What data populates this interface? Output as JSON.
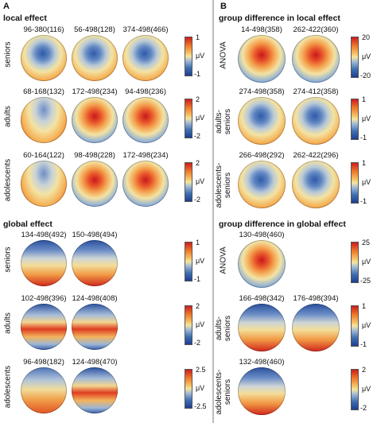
{
  "panel_a": {
    "letter": "A",
    "sections": [
      {
        "title": "local effect",
        "rows": [
          {
            "label": "seniors",
            "maps": [
              {
                "window": "96-380(116)",
                "pattern": "blue-center"
              },
              {
                "window": "56-498(128)",
                "pattern": "blue-center"
              },
              {
                "window": "374-498(466)",
                "pattern": "blue-center"
              }
            ],
            "colorbar": {
              "max": "1",
              "unit": "μV",
              "min": "-1"
            }
          },
          {
            "label": "adults",
            "maps": [
              {
                "window": "68-168(132)",
                "pattern": "blue-front"
              },
              {
                "window": "172-498(234)",
                "pattern": "red-center"
              },
              {
                "window": "94-498(236)",
                "pattern": "red-center"
              }
            ],
            "colorbar": {
              "max": "2",
              "unit": "μV",
              "min": "-2"
            }
          },
          {
            "label": "adolescents",
            "maps": [
              {
                "window": "60-164(122)",
                "pattern": "blue-front"
              },
              {
                "window": "98-498(228)",
                "pattern": "red-center"
              },
              {
                "window": "172-498(234)",
                "pattern": "red-center"
              }
            ],
            "colorbar": {
              "max": "2",
              "unit": "μV",
              "min": "-2"
            }
          }
        ]
      },
      {
        "title": "global effect",
        "rows": [
          {
            "label": "seniors",
            "maps": [
              {
                "window": "134-498(492)",
                "pattern": "blue-top-red-bottom"
              },
              {
                "window": "150-498(494)",
                "pattern": "blue-top-red-bottom"
              }
            ],
            "colorbar": {
              "max": "1",
              "unit": "μV",
              "min": "-1"
            }
          },
          {
            "label": "adults",
            "maps": [
              {
                "window": "102-498(396)",
                "pattern": "red-middle"
              },
              {
                "window": "124-498(408)",
                "pattern": "red-middle"
              }
            ],
            "colorbar": {
              "max": "2",
              "unit": "μV",
              "min": "-2"
            }
          },
          {
            "label": "adolescents",
            "maps": [
              {
                "window": "96-498(182)",
                "pattern": "blue-top"
              },
              {
                "window": "124-498(470)",
                "pattern": "red-middle"
              }
            ],
            "colorbar": {
              "max": "2.5",
              "unit": "μV",
              "min": "-2.5"
            }
          }
        ]
      }
    ]
  },
  "panel_b": {
    "letter": "B",
    "sections": [
      {
        "title": "group difference in local effect",
        "rows": [
          {
            "label": "ANOVA",
            "maps": [
              {
                "window": "14-498(358)",
                "pattern": "red-center"
              },
              {
                "window": "262-422(360)",
                "pattern": "red-center"
              }
            ],
            "colorbar": {
              "max": "20",
              "unit": "μV",
              "min": "-20"
            }
          },
          {
            "label": "adults-\nseniors",
            "maps": [
              {
                "window": "274-498(358)",
                "pattern": "blue-center"
              },
              {
                "window": "274-412(358)",
                "pattern": "blue-center"
              }
            ],
            "colorbar": {
              "max": "1",
              "unit": "μV",
              "min": "-1"
            }
          },
          {
            "label": "adolescents-\nseniors",
            "maps": [
              {
                "window": "266-498(292)",
                "pattern": "blue-center"
              },
              {
                "window": "262-422(296)",
                "pattern": "blue-center"
              }
            ],
            "colorbar": {
              "max": "1",
              "unit": "μV",
              "min": "-1"
            }
          }
        ]
      },
      {
        "title": "group difference in global effect",
        "rows": [
          {
            "label": "ANOVA",
            "maps": [
              {
                "window": "130-498(460)",
                "pattern": "red-center"
              }
            ],
            "colorbar": {
              "max": "25",
              "unit": "μV",
              "min": "-25"
            }
          },
          {
            "label": "adults-\nseniors",
            "maps": [
              {
                "window": "166-498(342)",
                "pattern": "blue-top-red-bottom"
              },
              {
                "window": "176-498(394)",
                "pattern": "blue-top-red-bottom"
              }
            ],
            "colorbar": {
              "max": "1",
              "unit": "μV",
              "min": "-1"
            }
          },
          {
            "label": "adolescents-\nseniors",
            "maps": [
              {
                "window": "132-498(460)",
                "pattern": "blue-top-red-bottom"
              }
            ],
            "colorbar": {
              "max": "2",
              "unit": "μV",
              "min": "-2"
            }
          }
        ]
      }
    ]
  }
}
